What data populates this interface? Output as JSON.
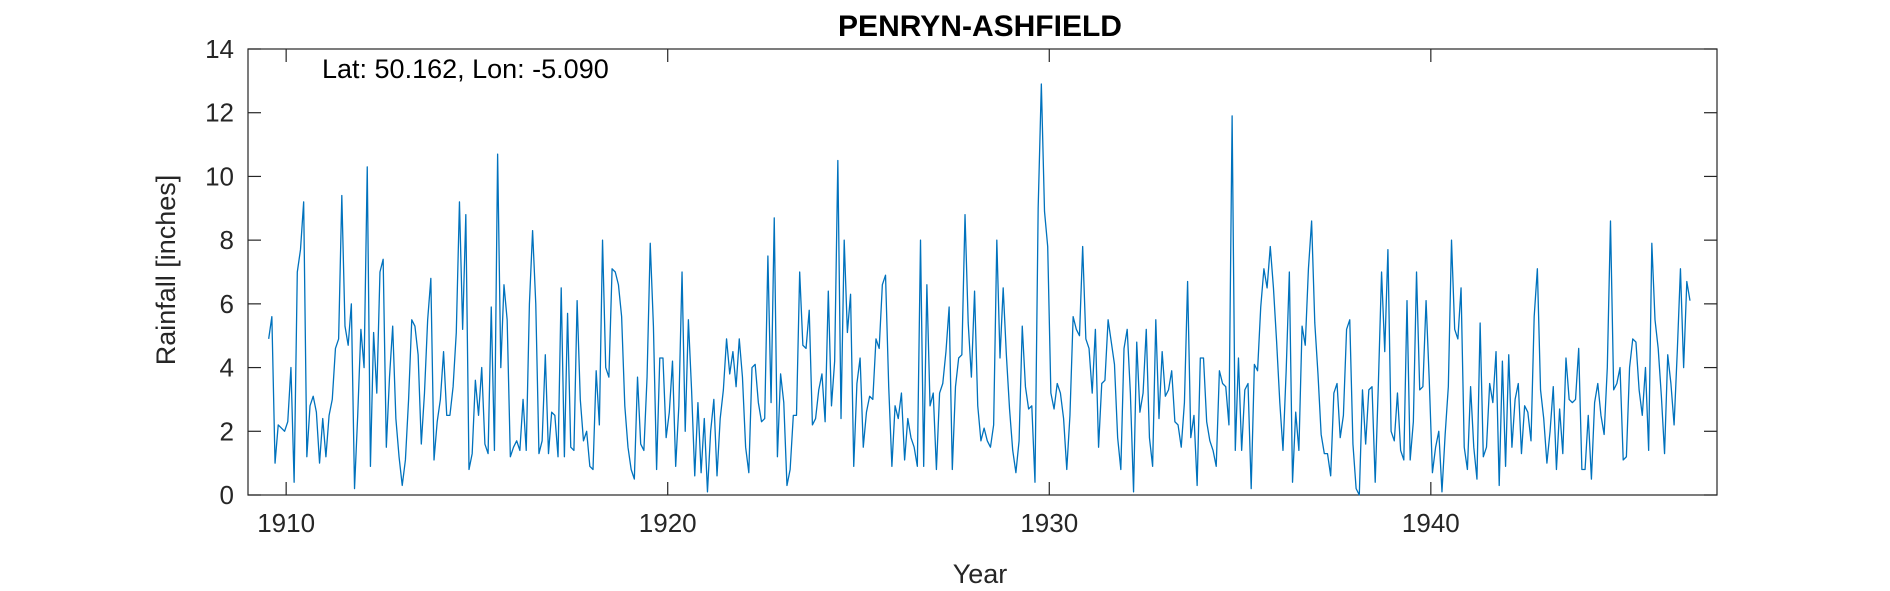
{
  "chart_data": {
    "type": "line",
    "title": "PENRYN-ASHFIELD",
    "xlabel": "Year",
    "ylabel": "Rainfall [inches]",
    "annotation": "Lat: 50.162, Lon: -5.090",
    "xlim": [
      1909,
      1947.5
    ],
    "ylim": [
      0,
      14
    ],
    "xticks": [
      1910,
      1920,
      1930,
      1940
    ],
    "yticks": [
      0,
      2,
      4,
      6,
      8,
      10,
      12,
      14
    ],
    "grid": false,
    "colors": {
      "series": "#0072BD",
      "axis": "#262626"
    },
    "series": [
      {
        "x_start": 1909.542,
        "x_step": 0.0833333,
        "values": [
          4.9,
          5.6,
          1.0,
          2.2,
          2.1,
          2.0,
          2.3,
          4.0,
          0.4,
          7.0,
          7.7,
          9.2,
          1.2,
          2.8,
          3.1,
          2.6,
          1.0,
          2.4,
          1.2,
          2.5,
          3.0,
          4.6,
          4.9,
          9.4,
          5.3,
          4.7,
          6.0,
          0.2,
          2.5,
          5.2,
          4.0,
          10.3,
          0.9,
          5.1,
          3.2,
          7.0,
          7.4,
          1.5,
          3.7,
          5.3,
          2.4,
          1.2,
          0.3,
          1.1,
          3.0,
          5.5,
          5.3,
          4.4,
          1.6,
          3.2,
          5.5,
          6.8,
          1.1,
          2.3,
          3.0,
          4.5,
          2.5,
          2.5,
          3.4,
          5.1,
          9.2,
          5.2,
          8.8,
          0.8,
          1.3,
          3.6,
          2.5,
          4.0,
          1.6,
          1.3,
          5.9,
          1.4,
          10.7,
          4.0,
          6.6,
          5.5,
          1.2,
          1.5,
          1.7,
          1.4,
          3.0,
          1.4,
          6.0,
          8.3,
          6.0,
          1.3,
          1.7,
          4.4,
          1.3,
          2.6,
          2.5,
          1.2,
          6.5,
          1.2,
          5.7,
          1.5,
          1.4,
          6.1,
          3.0,
          1.7,
          2.0,
          0.9,
          0.8,
          3.9,
          2.2,
          8.0,
          4.0,
          3.7,
          7.1,
          7.0,
          6.6,
          5.6,
          2.8,
          1.5,
          0.8,
          0.5,
          3.7,
          1.6,
          1.4,
          3.7,
          7.9,
          5.3,
          0.8,
          4.3,
          4.3,
          1.8,
          2.6,
          4.2,
          0.9,
          2.8,
          7.0,
          2.0,
          5.5,
          3.3,
          0.6,
          2.9,
          0.7,
          2.4,
          0.1,
          2.0,
          3.0,
          0.6,
          2.4,
          3.3,
          4.9,
          3.8,
          4.5,
          3.4,
          4.9,
          3.7,
          1.5,
          0.7,
          4.0,
          4.1,
          2.9,
          2.3,
          2.4,
          7.5,
          2.9,
          8.7,
          1.2,
          3.8,
          2.9,
          0.3,
          0.8,
          2.5,
          2.5,
          7.0,
          4.7,
          4.6,
          5.8,
          2.2,
          2.4,
          3.3,
          3.8,
          2.3,
          6.4,
          2.8,
          4.2,
          10.5,
          2.4,
          8.0,
          5.1,
          6.3,
          0.9,
          3.5,
          4.3,
          1.5,
          2.6,
          3.1,
          3.0,
          4.9,
          4.6,
          6.6,
          6.9,
          3.4,
          0.9,
          2.8,
          2.4,
          3.2,
          1.1,
          2.4,
          1.8,
          1.5,
          0.9,
          8.0,
          0.9,
          6.6,
          2.8,
          3.2,
          0.8,
          3.2,
          3.5,
          4.5,
          5.9,
          0.8,
          3.4,
          4.3,
          4.4,
          8.8,
          5.4,
          3.7,
          6.4,
          2.8,
          1.7,
          2.1,
          1.7,
          1.5,
          2.2,
          8.0,
          4.3,
          6.5,
          4.4,
          2.7,
          1.4,
          0.7,
          1.7,
          5.3,
          3.4,
          2.7,
          2.8,
          0.4,
          9.0,
          12.9,
          8.9,
          7.8,
          3.2,
          2.7,
          3.5,
          3.2,
          2.4,
          0.8,
          2.5,
          5.6,
          5.2,
          5.0,
          7.8,
          4.9,
          4.6,
          3.2,
          5.2,
          1.5,
          3.5,
          3.6,
          5.5,
          4.8,
          4.1,
          1.8,
          0.8,
          4.6,
          5.2,
          3.2,
          0.1,
          4.8,
          2.6,
          3.2,
          5.2,
          1.8,
          0.9,
          5.5,
          2.4,
          4.5,
          3.1,
          3.3,
          3.9,
          2.3,
          2.2,
          1.5,
          2.9,
          6.7,
          1.8,
          2.5,
          0.3,
          4.3,
          4.3,
          2.3,
          1.7,
          1.4,
          0.9,
          3.9,
          3.5,
          3.4,
          2.2,
          11.9,
          1.4,
          4.3,
          1.4,
          3.3,
          3.5,
          0.2,
          4.1,
          3.9,
          5.9,
          7.1,
          6.5,
          7.8,
          6.5,
          4.8,
          2.9,
          1.4,
          3.9,
          7.0,
          0.4,
          2.6,
          1.4,
          5.3,
          4.7,
          7.1,
          8.6,
          5.4,
          3.8,
          1.9,
          1.3,
          1.3,
          0.6,
          3.2,
          3.5,
          1.8,
          2.5,
          5.2,
          5.5,
          1.6,
          0.2,
          0.0,
          3.3,
          1.6,
          3.3,
          3.4,
          0.4,
          3.5,
          7.0,
          4.5,
          7.7,
          2.0,
          1.7,
          3.2,
          1.4,
          1.1,
          6.1,
          1.1,
          2.3,
          7.0,
          3.3,
          3.4,
          6.1,
          3.6,
          0.7,
          1.5,
          2.0,
          0.1,
          1.9,
          3.4,
          8.0,
          5.2,
          4.9,
          6.5,
          1.5,
          0.8,
          3.4,
          1.5,
          0.5,
          5.4,
          1.2,
          1.5,
          3.5,
          2.9,
          4.5,
          0.3,
          4.2,
          0.9,
          4.4,
          1.5,
          3.0,
          3.5,
          1.3,
          2.8,
          2.6,
          1.7,
          5.6,
          7.1,
          3.3,
          2.4,
          1.0,
          2.0,
          3.4,
          0.8,
          2.7,
          1.3,
          4.3,
          3.0,
          2.9,
          3.0,
          4.6,
          0.8,
          0.8,
          2.5,
          0.5,
          2.9,
          3.5,
          2.5,
          1.9,
          4.0,
          8.6,
          3.3,
          3.5,
          4.0,
          1.1,
          1.2,
          4.0,
          4.9,
          4.8,
          3.3,
          2.5,
          4.0,
          1.4,
          7.9,
          5.5,
          4.6,
          3.1,
          1.3,
          4.4,
          3.5,
          2.2,
          4.5,
          7.1,
          4.0,
          6.7,
          6.1
        ]
      }
    ]
  }
}
